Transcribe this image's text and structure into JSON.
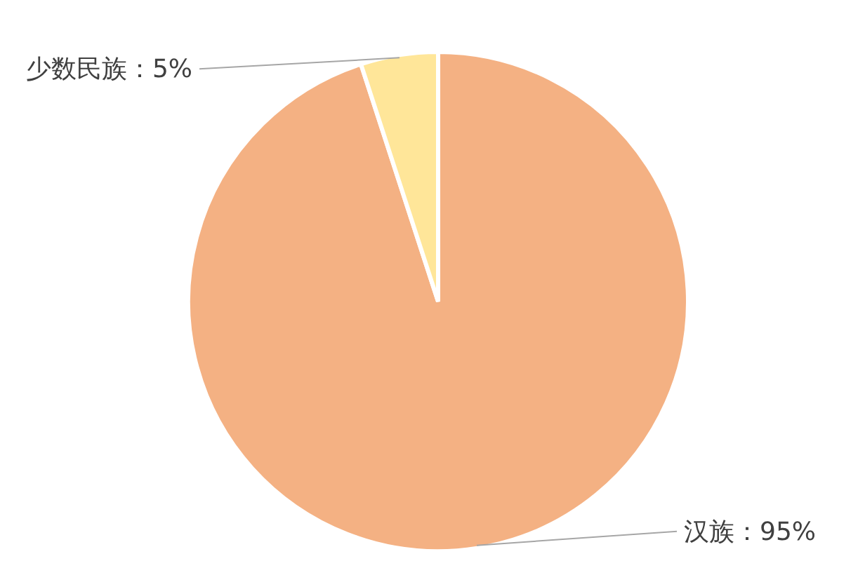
{
  "chart_data": {
    "type": "pie",
    "categories": [
      "汉族",
      "少数民族"
    ],
    "values": [
      95,
      5
    ],
    "value_labels": [
      "：95%",
      "：5%"
    ],
    "colors": [
      "#f4b183",
      "#ffe699"
    ],
    "legend": false
  }
}
